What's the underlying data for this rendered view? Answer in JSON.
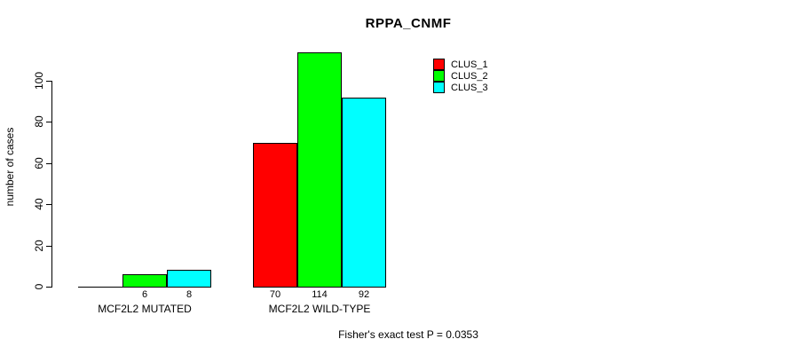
{
  "chart_data": {
    "type": "bar",
    "title": "RPPA_CNMF",
    "xlabel": "",
    "ylabel": "number of cases",
    "ylim": [
      0,
      115
    ],
    "yticks": [
      0,
      20,
      40,
      60,
      80,
      100
    ],
    "grid": false,
    "legend_position": "top-right",
    "categories": [
      "MCF2L2 MUTATED",
      "MCF2L2 WILD-TYPE"
    ],
    "series": [
      {
        "name": "CLUS_1",
        "color": "#ff0000",
        "values": [
          0,
          70
        ]
      },
      {
        "name": "CLUS_2",
        "color": "#00ff00",
        "values": [
          6,
          114
        ]
      },
      {
        "name": "CLUS_3",
        "color": "#00ffff",
        "values": [
          8,
          92
        ]
      }
    ],
    "bar_value_labels": [
      [
        "",
        "6",
        "8"
      ],
      [
        "70",
        "114",
        "92"
      ]
    ],
    "annotation": "Fisher's exact test P = 0.0353"
  }
}
